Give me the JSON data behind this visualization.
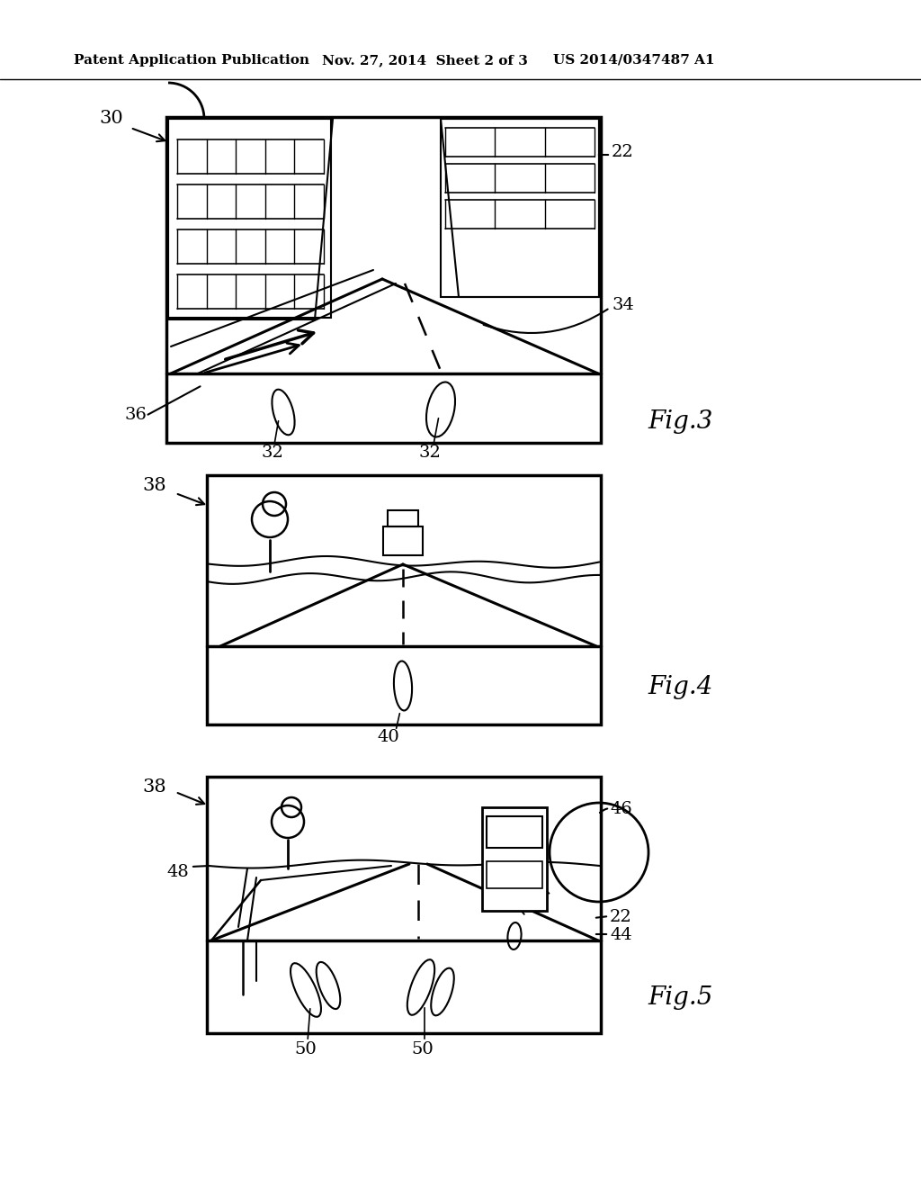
{
  "bg_color": "#ffffff",
  "header_left": "Patent Application Publication",
  "header_mid": "Nov. 27, 2014  Sheet 2 of 3",
  "header_right": "US 2014/0347487 A1",
  "fig3_label": "Fig.3",
  "fig4_label": "Fig.4",
  "fig5_label": "Fig.5",
  "label_30": "30",
  "label_22_top": "22",
  "label_34": "34",
  "label_36": "36",
  "label_32a": "32",
  "label_32b": "32",
  "label_38a": "38",
  "label_38b": "38",
  "label_40": "40",
  "label_46": "46",
  "label_48": "48",
  "label_22_bot": "22",
  "label_44": "44",
  "label_50a": "50",
  "label_50b": "50"
}
